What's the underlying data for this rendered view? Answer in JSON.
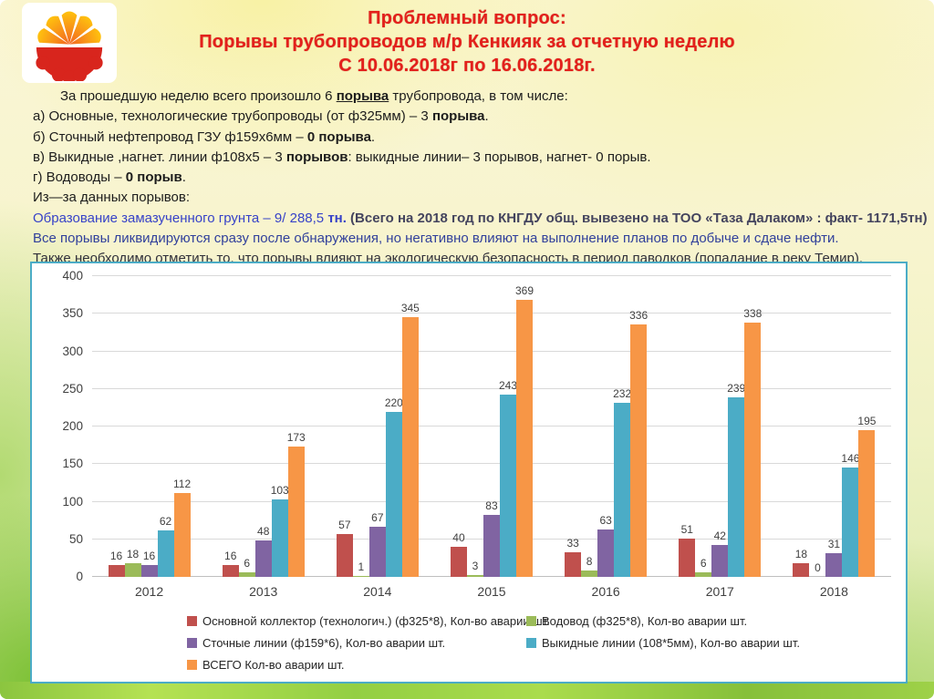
{
  "title": {
    "line1": "Проблемный вопрос:",
    "line2": "Порывы трубопроводов м/р Кенкияк  за отчетную неделю",
    "line3": "С 10.06.2018г по 16.06.2018г.",
    "color": "#e3201b"
  },
  "logo": {
    "icon": "cnpc-flower-logo",
    "petal_color": "#f7941d",
    "base_color": "#d8251d"
  },
  "body": {
    "lines": [
      {
        "indent": true,
        "segments": [
          {
            "text": "За прошедшую неделю всего произошло  6 "
          },
          {
            "text": "порыва",
            "bold": true,
            "underline": true
          },
          {
            "text": "  трубопровода, в том числе:"
          }
        ]
      },
      {
        "segments": [
          {
            "text": "а)  Основные, технологические трубопроводы (от ф325мм) – 3 "
          },
          {
            "text": "порыва",
            "bold": true
          },
          {
            "text": "."
          }
        ]
      },
      {
        "segments": [
          {
            "text": "б)  Сточный нефтепровод ГЗУ ф159х6мм – "
          },
          {
            "text": "0 порыва",
            "bold": true
          },
          {
            "text": "."
          }
        ]
      },
      {
        "segments": [
          {
            "text": "в)  Выкидные ,нагнет. линии ф108х5 –  3 "
          },
          {
            "text": "порывов",
            "bold": true
          },
          {
            "text": ": выкидные линии–  3 порывов, нагнет- 0 порыв."
          }
        ]
      },
      {
        "segments": [
          {
            "text": "г)  Водоводы – "
          },
          {
            "text": "0 порыв",
            "bold": true
          },
          {
            "text": "."
          }
        ]
      },
      {
        "segments": [
          {
            "text": "Из—за  данных порывов:"
          }
        ]
      },
      {
        "segments": [
          {
            "text": "Образование замазученного грунта –  9/ 288,5 ",
            "color": "#3742c8"
          },
          {
            "text": "тн.",
            "bold": true,
            "color": "#3742c8"
          },
          {
            "text": " (Всего на 2018 год по КНГДУ  общ. вывезено  на ТОО  «Таза  Далаком» : факт- 1171,5тн)",
            "bold": true,
            "color": "#44445e"
          }
        ]
      },
      {
        "segments": [
          {
            "text": " Все порывы ликвидируются сразу после обнаружения, но негативно влияют на выполнение планов по добыче и сдаче нефти.",
            "color": "#31409b"
          }
        ]
      },
      {
        "segments": [
          {
            "text": "Также необходимо отметить то, что порывы влияют на экологическую безопасность в период паводков (попадание в реку Темир).",
            "color": "#30303a"
          }
        ]
      }
    ]
  },
  "chart_data": {
    "type": "bar",
    "title": "",
    "xlabel": "",
    "ylabel": "",
    "categories": [
      "2012",
      "2013",
      "2014",
      "2015",
      "2016",
      "2017",
      "2018"
    ],
    "series": [
      {
        "name": "Основной коллектор (технологич.) (ф325*8),  Кол-во аварии шт.",
        "color": "#c0504d",
        "values": [
          16,
          16,
          57,
          40,
          33,
          51,
          18
        ]
      },
      {
        "name": "Водовод (ф325*8),  Кол-во аварии шт.",
        "color": "#9bbb59",
        "values": [
          18,
          6,
          1,
          3,
          8,
          6,
          0
        ]
      },
      {
        "name": "Сточные линии (ф159*6),  Кол-во аварии шт.",
        "color": "#8064a2",
        "values": [
          16,
          48,
          67,
          83,
          63,
          42,
          31
        ]
      },
      {
        "name": "Выкидные линии (108*5мм),  Кол-во аварии шт.",
        "color": "#4bacc6",
        "values": [
          62,
          103,
          220,
          243,
          232,
          239,
          146
        ]
      },
      {
        "name": "ВСЕГО   Кол-во  аварии шт.",
        "color": "#f79646",
        "values": [
          112,
          173,
          345,
          369,
          336,
          338,
          195
        ]
      }
    ],
    "ylim": [
      0,
      400
    ],
    "ytick_step": 50,
    "grid": true,
    "legend_position": "bottom",
    "border_color": "#4bacc6"
  }
}
